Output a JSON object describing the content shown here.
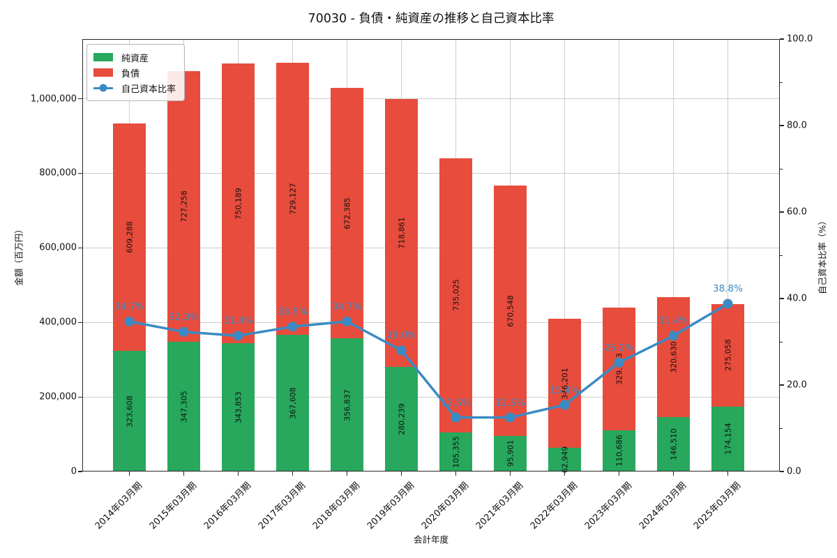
{
  "title": "70030 - 負債・純資産の推移と自己資本比率",
  "chart_data": {
    "type": "bar",
    "subtype": "stacked-bar-with-line",
    "title": "70030 - 負債・純資産の推移と自己資本比率",
    "xlabel": "会計年度",
    "ylabel_left": "金額（百万円）",
    "ylabel_right": "自己資本比率（%）",
    "categories": [
      "2014年03月期",
      "2015年03月期",
      "2016年03月期",
      "2017年03月期",
      "2018年03月期",
      "2019年03月期",
      "2020年03月期",
      "2021年03月期",
      "2022年03月期",
      "2023年03月期",
      "2024年03月期",
      "2025年03月期"
    ],
    "series": [
      {
        "name": "純資産",
        "type": "bar",
        "stack": 0,
        "color": "#27a85c",
        "values": [
          323608,
          347305,
          343853,
          367608,
          356837,
          280239,
          105355,
          95901,
          62949,
          110686,
          146510,
          174154
        ]
      },
      {
        "name": "負債",
        "type": "bar",
        "stack": 1,
        "color": "#e74c3c",
        "values": [
          609288,
          727258,
          750189,
          729127,
          672385,
          718861,
          735025,
          670548,
          346201,
          329373,
          320630,
          275058
        ]
      },
      {
        "name": "自己資本比率",
        "type": "line",
        "axis": "right",
        "color": "#3a8ac4",
        "unit": "%",
        "values": [
          34.7,
          32.3,
          31.4,
          33.5,
          34.7,
          28.0,
          12.5,
          12.5,
          15.4,
          25.2,
          31.4,
          38.8
        ]
      }
    ],
    "ylim_left": [
      0,
      1160000
    ],
    "ylim_right": [
      0,
      100
    ],
    "yticks_left": [
      {
        "v": 0,
        "label": "0"
      },
      {
        "v": 200000,
        "label": "200,000"
      },
      {
        "v": 400000,
        "label": "400,000"
      },
      {
        "v": 600000,
        "label": "600,000"
      },
      {
        "v": 800000,
        "label": "800,000"
      },
      {
        "v": 1000000,
        "label": "1,000,000"
      }
    ],
    "yticks_right": [
      {
        "v": 0,
        "label": "0.0"
      },
      {
        "v": 20,
        "label": "20.0"
      },
      {
        "v": 40,
        "label": "40.0"
      },
      {
        "v": 60,
        "label": "60.0"
      },
      {
        "v": 80,
        "label": "80.0"
      },
      {
        "v": 100,
        "label": "100.0"
      }
    ],
    "yticks_right_minor": [
      10,
      30,
      50,
      70,
      90
    ],
    "grid": true,
    "legend_position": "upper-left",
    "colors": {
      "net_assets": "#27a85c",
      "liabilities": "#e74c3c",
      "equity_ratio_line": "#3a8ac4",
      "gridline": "#cccccc",
      "axis": "#262626"
    }
  }
}
